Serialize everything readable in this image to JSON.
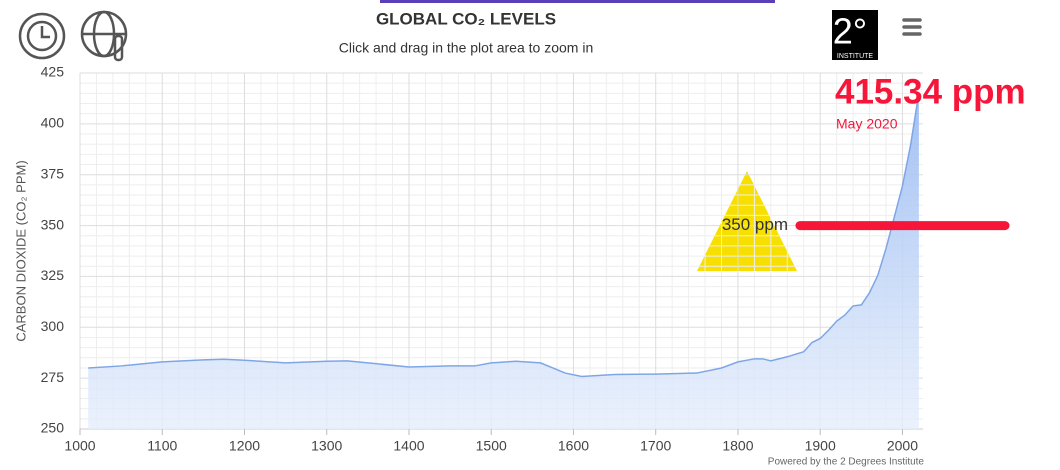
{
  "chart_data": {
    "type": "area",
    "title": "GLOBAL CO₂ LEVELS",
    "subtitle": "Click and drag in the plot area to zoom in",
    "y_label": "CARBON DIOXIDE (CO₂ PPM)",
    "credits": "Powered by the 2 Degrees Institute",
    "logo": {
      "mark": "2°",
      "name": "INSTITUTE"
    },
    "x": [
      1010,
      1050,
      1100,
      1150,
      1175,
      1200,
      1250,
      1300,
      1325,
      1350,
      1400,
      1450,
      1480,
      1500,
      1530,
      1560,
      1590,
      1610,
      1650,
      1700,
      1750,
      1780,
      1800,
      1820,
      1830,
      1840,
      1860,
      1880,
      1890,
      1900,
      1910,
      1920,
      1930,
      1940,
      1950,
      1960,
      1970,
      1980,
      1990,
      2000,
      2010,
      2020
    ],
    "series": [
      {
        "color": "#7ea6e6",
        "values": [
          280,
          281,
          283,
          284,
          284.3,
          283.8,
          282.5,
          283.3,
          283.5,
          282.5,
          280.5,
          281,
          281,
          282.5,
          283.3,
          282.5,
          277.5,
          275.8,
          276.8,
          277,
          277.5,
          280,
          283,
          284.5,
          284.5,
          283.5,
          285.5,
          288,
          292.5,
          294.5,
          298.5,
          303,
          306,
          310.5,
          311,
          317,
          325.5,
          338.7,
          354,
          369.5,
          389.8,
          415.34
        ]
      }
    ],
    "xlim": [
      1000,
      2025
    ],
    "xticks": [
      1000,
      1100,
      1200,
      1300,
      1400,
      1500,
      1600,
      1700,
      1800,
      1900,
      2000
    ],
    "ylim": [
      250,
      425
    ],
    "yticks": [
      250,
      275,
      300,
      325,
      350,
      375,
      400,
      425
    ],
    "grid": true,
    "reference_line": {
      "value": 350,
      "label": "350 ppm",
      "color": "#f5163a"
    },
    "latest": {
      "value": 415.34,
      "label": "415.34 ppm",
      "date": "May 2020",
      "color": "#f5163a"
    }
  }
}
